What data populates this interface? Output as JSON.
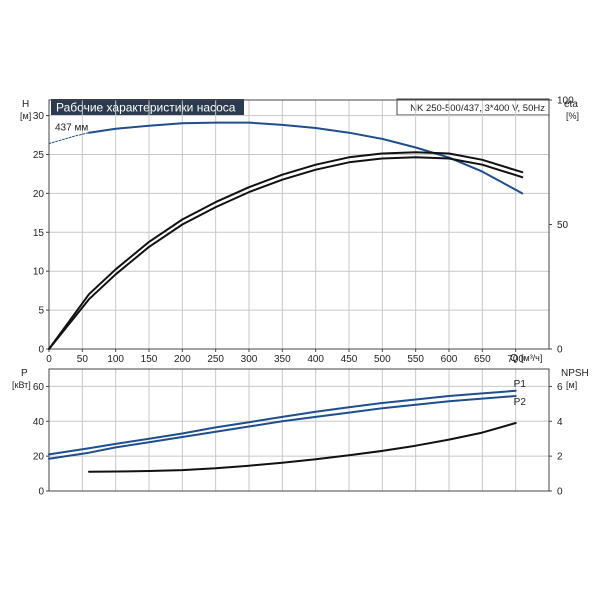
{
  "header": {
    "title": "Рабочие характеристики насоса",
    "model": "NK 250-500/437, 3*400 V, 50Hz"
  },
  "colors": {
    "header_bg": "#2b3a4e",
    "header_text": "#ffffff",
    "blue": "#1f4e8c",
    "black": "#111111",
    "grid": "#c8c8c8"
  },
  "chart_data": [
    {
      "type": "line",
      "panel": "head-efficiency",
      "x_axis": {
        "label": "Q",
        "unit": "[м³/ч]",
        "range": [
          0,
          750
        ],
        "ticks": [
          "0",
          "50",
          "100",
          "150",
          "200",
          "250",
          "300",
          "350",
          "400",
          "450",
          "500",
          "550",
          "600",
          "650",
          "700"
        ]
      },
      "y_left": {
        "label": "H",
        "unit": "[м]",
        "range": [
          0,
          32
        ],
        "ticks": [
          "0",
          "5",
          "10",
          "15",
          "20",
          "25",
          "30"
        ]
      },
      "y_right": {
        "label": "eta",
        "unit": "[%]",
        "range": [
          0,
          100
        ],
        "ticks": [
          "0",
          "50",
          "100"
        ]
      },
      "grid": true,
      "series": [
        {
          "name": "437 мм",
          "axis": "left",
          "color": "#1f4e8c",
          "style": "dashed",
          "x": [
            0,
            40,
            60
          ],
          "y": [
            26.4,
            27.4,
            27.8
          ]
        },
        {
          "name": "437 мм",
          "axis": "left",
          "color": "#1f4e8c",
          "style": "solid",
          "x": [
            60,
            100,
            150,
            200,
            250,
            300,
            350,
            400,
            450,
            500,
            550,
            600,
            650,
            710
          ],
          "y": [
            27.8,
            28.3,
            28.7,
            29.0,
            29.1,
            29.1,
            28.8,
            28.4,
            27.8,
            27.0,
            25.9,
            24.6,
            22.8,
            20.0
          ]
        },
        {
          "name": "",
          "axis": "right",
          "color": "#111111",
          "style": "solid",
          "x": [
            0,
            60,
            100,
            150,
            200,
            250,
            300,
            350,
            400,
            450,
            500,
            550,
            600,
            650,
            710
          ],
          "y": [
            0,
            22,
            32,
            43,
            52,
            59,
            65,
            70,
            74,
            77,
            78.5,
            79,
            78.5,
            76,
            71
          ]
        },
        {
          "name": "",
          "axis": "right",
          "color": "#111111",
          "style": "solid",
          "x": [
            0,
            60,
            100,
            150,
            200,
            250,
            300,
            350,
            400,
            450,
            500,
            550,
            600,
            650,
            710
          ],
          "y": [
            0,
            20,
            30,
            41,
            50,
            57,
            63,
            68,
            72,
            75,
            76.5,
            77,
            76.5,
            74,
            69
          ]
        }
      ]
    },
    {
      "type": "line",
      "panel": "power-npsh",
      "x_axis": {
        "range": [
          0,
          750
        ]
      },
      "y_left": {
        "label": "P",
        "unit": "[кВт]",
        "range": [
          0,
          70
        ],
        "ticks": [
          "0",
          "20",
          "40",
          "60"
        ]
      },
      "y_right": {
        "label": "NPSH",
        "unit": "[м]",
        "range": [
          0,
          7
        ],
        "ticks": [
          "0",
          "2",
          "4",
          "6"
        ]
      },
      "grid": true,
      "series": [
        {
          "name": "P1",
          "axis": "left",
          "color": "#1f4e8c",
          "style": "solid",
          "x": [
            0,
            60,
            100,
            150,
            200,
            250,
            300,
            350,
            400,
            450,
            500,
            550,
            600,
            650,
            700
          ],
          "y": [
            21,
            24.5,
            27,
            30,
            33,
            36.5,
            39.5,
            42.5,
            45.5,
            48,
            50.5,
            52.5,
            54.5,
            56,
            57.5
          ]
        },
        {
          "name": "P2",
          "axis": "left",
          "color": "#1f4e8c",
          "style": "solid",
          "x": [
            0,
            60,
            100,
            150,
            200,
            250,
            300,
            350,
            400,
            450,
            500,
            550,
            600,
            650,
            700
          ],
          "y": [
            18.5,
            22,
            25,
            28,
            31,
            34,
            37,
            40,
            42.5,
            45,
            47.5,
            49.5,
            51.5,
            53,
            54.5
          ]
        },
        {
          "name": "",
          "axis": "right",
          "color": "#111111",
          "style": "solid",
          "x": [
            60,
            100,
            150,
            200,
            250,
            300,
            350,
            400,
            450,
            500,
            550,
            600,
            650,
            700
          ],
          "y": [
            1.1,
            1.12,
            1.15,
            1.2,
            1.3,
            1.45,
            1.62,
            1.82,
            2.05,
            2.3,
            2.6,
            2.95,
            3.35,
            3.9
          ]
        }
      ]
    }
  ]
}
